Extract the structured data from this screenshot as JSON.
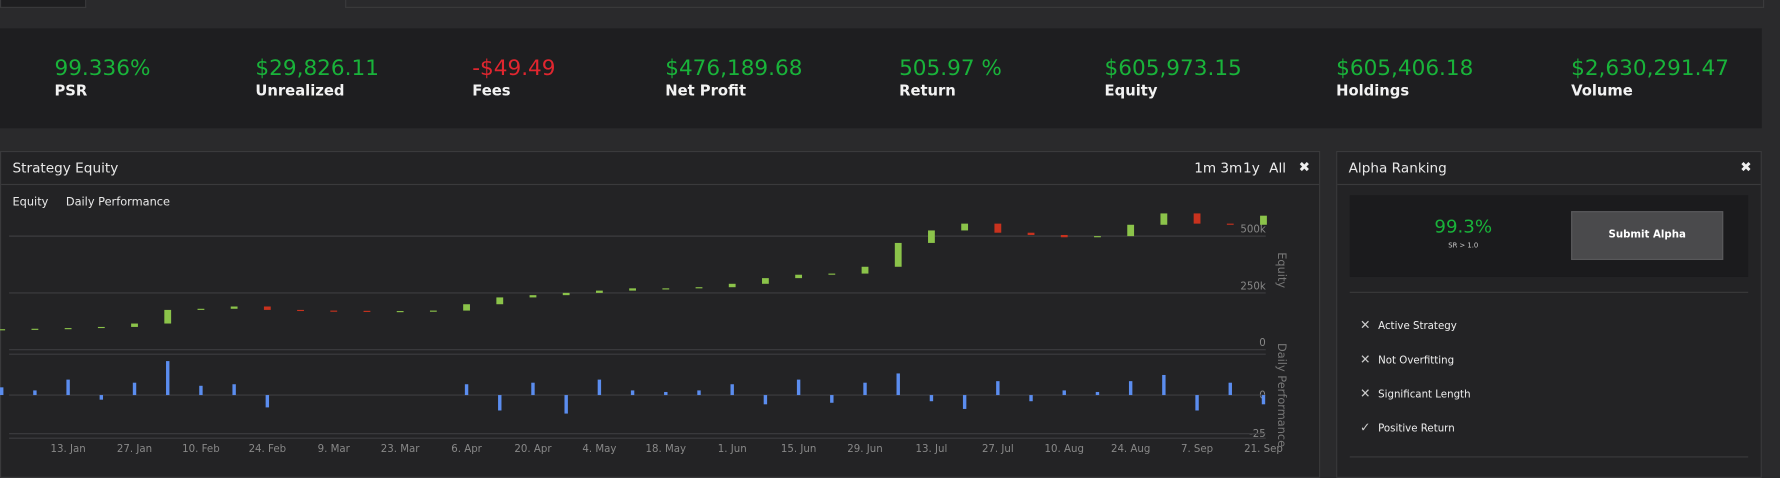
{
  "stats": [
    {
      "value": "99.336%",
      "label": "PSR"
    },
    {
      "value": "$29,826.11",
      "label": "Unrealized"
    },
    {
      "value": "-$49.49",
      "label": "Fees"
    },
    {
      "value": "$476,189.68",
      "label": "Net Profit"
    },
    {
      "value": "505.97 %",
      "label": "Return"
    },
    {
      "value": "$605,973.15",
      "label": "Equity"
    },
    {
      "value": "$605,406.18",
      "label": "Holdings"
    },
    {
      "value": "$2,630,291.47",
      "label": "Volume"
    }
  ],
  "chart_data": {
    "type": "candlestick",
    "title": "Strategy Equity",
    "ranges": [
      "1m",
      "3m",
      "1y",
      "All"
    ],
    "ylabel": "Equity",
    "y2label": "Daily Performance",
    "categories": [
      null,
      null,
      "13. Jan",
      null,
      "27. Jan",
      null,
      "10. Feb",
      null,
      "24. Feb",
      null,
      "9. Mar",
      null,
      "23. Mar",
      null,
      "6. Apr",
      null,
      "20. Apr",
      null,
      "4. May",
      null,
      "18. May",
      null,
      "1. Jun",
      null,
      "15. Jun",
      null,
      "29. Jun",
      null,
      "13. Jul",
      null,
      "27. Jul",
      null,
      "10. Aug",
      null,
      "24. Aug",
      null,
      "7. Sep",
      null,
      "21. Sep"
    ],
    "series": [
      {
        "name": "Equity",
        "type": "candlestick",
        "up_color": "#8bc34a",
        "down_color": "#c8321e",
        "open": [
          86000,
          90000,
          92000,
          95000,
          100000,
          115000,
          175000,
          180000,
          190000,
          175000,
          172000,
          171000,
          170000,
          170000,
          172000,
          200000,
          230000,
          240000,
          250000,
          260000,
          270000,
          270000,
          275000,
          290000,
          315000,
          330000,
          335000,
          365000,
          470000,
          525000,
          555000,
          515000,
          505000,
          495000,
          500000,
          550000,
          600000,
          555000,
          550000
        ],
        "close": [
          90000,
          92000,
          95000,
          100000,
          115000,
          175000,
          180000,
          190000,
          175000,
          172000,
          171000,
          170000,
          170000,
          172000,
          200000,
          230000,
          240000,
          250000,
          260000,
          270000,
          270000,
          275000,
          290000,
          315000,
          330000,
          335000,
          365000,
          470000,
          525000,
          555000,
          515000,
          505000,
          495000,
          500000,
          550000,
          600000,
          555000,
          550000,
          590000
        ]
      },
      {
        "name": "Daily Performance",
        "type": "bar",
        "axis": "y2",
        "color": "#5b8def",
        "values": [
          5,
          3,
          10,
          -3,
          8,
          22,
          6,
          7,
          -8,
          null,
          null,
          null,
          null,
          null,
          7,
          -10,
          8,
          -12,
          10,
          3,
          2,
          3,
          7,
          -6,
          10,
          -5,
          8,
          14,
          -4,
          -9,
          9,
          -4,
          3,
          2,
          9,
          13,
          -10,
          8,
          -6
        ]
      }
    ],
    "ylim": [
      0,
      720000
    ],
    "yticks": [
      0,
      {
        "value": 250000,
        "label": "250k"
      },
      {
        "value": 500000,
        "label": "500k"
      }
    ],
    "y2lim": [
      -27,
      27
    ],
    "y2ticks": [
      0,
      -25
    ],
    "grid": true
  },
  "alpha": {
    "title": "Alpha Ranking",
    "score": "99.3%",
    "score_caption": "SR > 1.0",
    "button": "Submit Alpha",
    "checks": [
      {
        "label": "Active Strategy",
        "passed": false
      },
      {
        "label": "Not Overfitting",
        "passed": false
      },
      {
        "label": "Significant Length",
        "passed": false
      },
      {
        "label": "Positive Return",
        "passed": true
      }
    ]
  }
}
